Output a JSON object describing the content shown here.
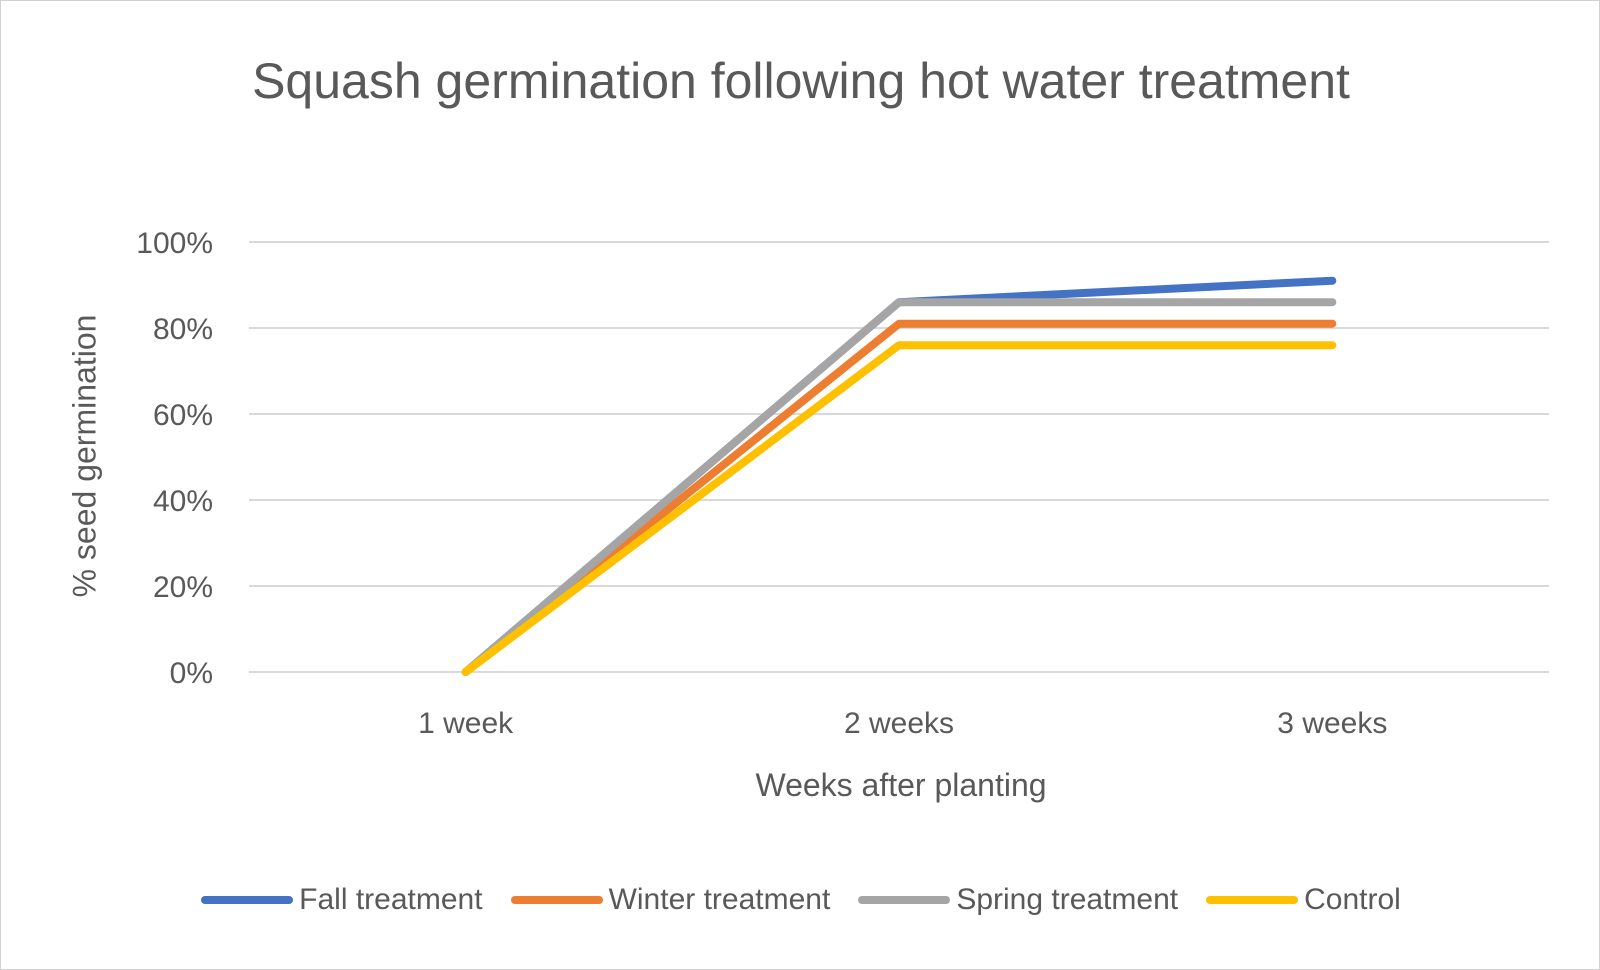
{
  "chart_data": {
    "type": "line",
    "title": "Squash germination following hot water treatment",
    "xlabel": "Weeks after planting",
    "ylabel": "% seed germination",
    "categories": [
      "1 week",
      "2 weeks",
      "3 weeks"
    ],
    "ylim": [
      0,
      100
    ],
    "yticks": [
      "0%",
      "20%",
      "40%",
      "60%",
      "80%",
      "100%"
    ],
    "ytick_values": [
      0,
      20,
      40,
      60,
      80,
      100
    ],
    "grid": true,
    "legend_position": "bottom",
    "series": [
      {
        "name": "Fall treatment",
        "color": "#4472C4",
        "values": [
          0,
          86,
          91
        ]
      },
      {
        "name": "Winter treatment",
        "color": "#ED7D31",
        "values": [
          0,
          81,
          81
        ]
      },
      {
        "name": "Spring treatment",
        "color": "#A5A5A5",
        "values": [
          0,
          86,
          86
        ]
      },
      {
        "name": "Control",
        "color": "#FFC000",
        "values": [
          0,
          76,
          76
        ]
      }
    ]
  }
}
